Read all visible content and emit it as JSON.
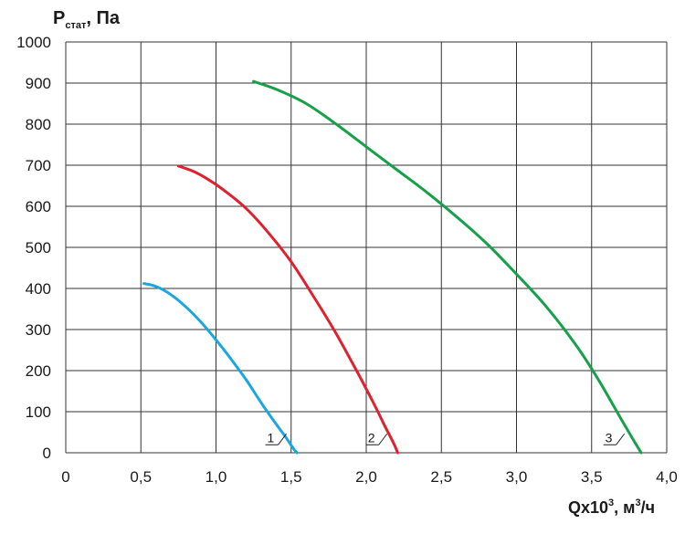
{
  "chart_data": {
    "type": "line",
    "ylabel_main": "P",
    "ylabel_sub": "стат",
    "ylabel_suffix": ", Па",
    "xlabel_main": "Qx10",
    "xlabel_sup": "3",
    "xlabel_mid": ", м",
    "xlabel_sup2": "3",
    "xlabel_suffix": "/ч",
    "xlim": [
      0,
      4.0
    ],
    "ylim": [
      0,
      1000
    ],
    "x_ticks": [
      {
        "v": 0,
        "label": "0"
      },
      {
        "v": 0.5,
        "label": "0,5"
      },
      {
        "v": 1.0,
        "label": "1,0"
      },
      {
        "v": 1.5,
        "label": "1,5"
      },
      {
        "v": 2.0,
        "label": "2,0"
      },
      {
        "v": 2.5,
        "label": "2,5"
      },
      {
        "v": 3.0,
        "label": "3,0"
      },
      {
        "v": 3.5,
        "label": "3,5"
      },
      {
        "v": 4.0,
        "label": "4,0"
      }
    ],
    "y_ticks": [
      {
        "v": 0,
        "label": "0"
      },
      {
        "v": 100,
        "label": "100"
      },
      {
        "v": 200,
        "label": "200"
      },
      {
        "v": 300,
        "label": "300"
      },
      {
        "v": 400,
        "label": "400"
      },
      {
        "v": 500,
        "label": "500"
      },
      {
        "v": 600,
        "label": "600"
      },
      {
        "v": 700,
        "label": "700"
      },
      {
        "v": 800,
        "label": "800"
      },
      {
        "v": 900,
        "label": "900"
      },
      {
        "v": 1000,
        "label": "1000"
      }
    ],
    "grid": true,
    "series": [
      {
        "label": "1",
        "color": "#1aa7e0",
        "points": [
          [
            0.52,
            412
          ],
          [
            0.6,
            405
          ],
          [
            0.7,
            385
          ],
          [
            0.8,
            355
          ],
          [
            0.9,
            318
          ],
          [
            1.0,
            275
          ],
          [
            1.1,
            228
          ],
          [
            1.2,
            178
          ],
          [
            1.3,
            122
          ],
          [
            1.4,
            70
          ],
          [
            1.46,
            40
          ],
          [
            1.52,
            8
          ],
          [
            1.54,
            0
          ]
        ],
        "label_at": [
          1.45,
          55
        ]
      },
      {
        "label": "2",
        "color": "#e0202e",
        "points": [
          [
            0.75,
            698
          ],
          [
            0.85,
            685
          ],
          [
            0.95,
            665
          ],
          [
            1.05,
            640
          ],
          [
            1.2,
            595
          ],
          [
            1.35,
            535
          ],
          [
            1.5,
            465
          ],
          [
            1.65,
            380
          ],
          [
            1.8,
            290
          ],
          [
            1.95,
            190
          ],
          [
            2.05,
            120
          ],
          [
            2.12,
            68
          ],
          [
            2.18,
            25
          ],
          [
            2.21,
            0
          ]
        ],
        "label_at": [
          2.12,
          55
        ]
      },
      {
        "label": "3",
        "color": "#17a04a",
        "points": [
          [
            1.25,
            904
          ],
          [
            1.4,
            885
          ],
          [
            1.6,
            850
          ],
          [
            1.8,
            800
          ],
          [
            2.0,
            745
          ],
          [
            2.2,
            690
          ],
          [
            2.4,
            635
          ],
          [
            2.6,
            575
          ],
          [
            2.8,
            510
          ],
          [
            3.0,
            435
          ],
          [
            3.2,
            355
          ],
          [
            3.4,
            260
          ],
          [
            3.55,
            175
          ],
          [
            3.7,
            80
          ],
          [
            3.78,
            30
          ],
          [
            3.83,
            0
          ]
        ],
        "label_at": [
          3.7,
          55
        ]
      }
    ]
  }
}
